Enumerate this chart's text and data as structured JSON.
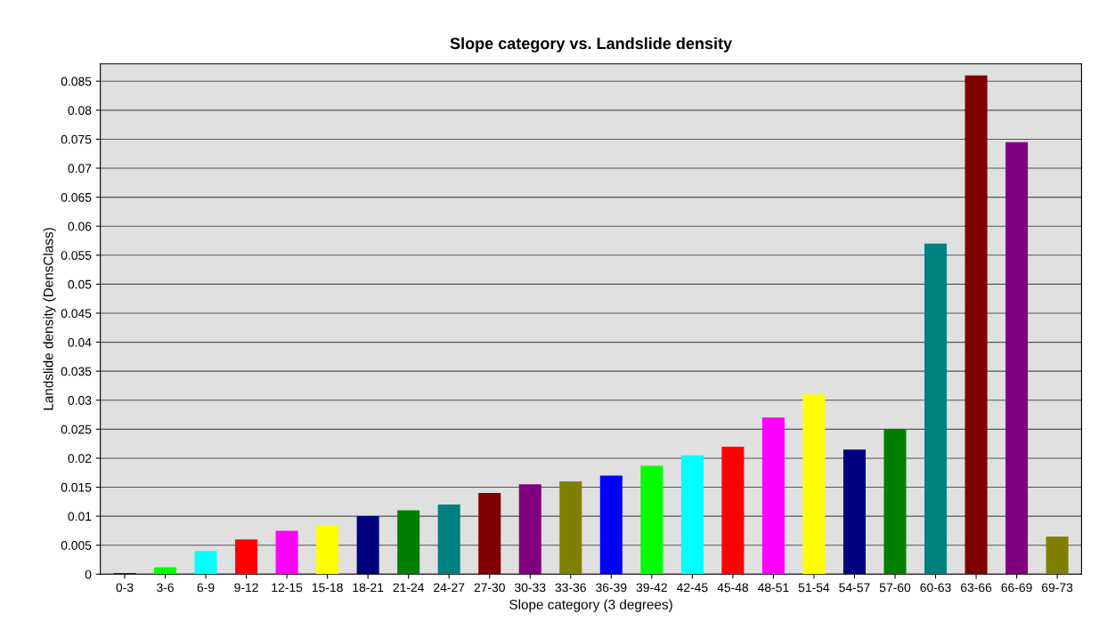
{
  "chart_data": {
    "type": "bar",
    "title": "Slope category vs. Landslide density",
    "xlabel": "Slope category (3 degrees)",
    "ylabel": "Landslide density (DensClass)",
    "categories": [
      "0-3",
      "3-6",
      "6-9",
      "9-12",
      "12-15",
      "15-18",
      "18-21",
      "21-24",
      "24-27",
      "27-30",
      "30-33",
      "33-36",
      "36-39",
      "39-42",
      "42-45",
      "45-48",
      "48-51",
      "51-54",
      "54-57",
      "57-60",
      "60-63",
      "63-66",
      "66-69",
      "69-73"
    ],
    "values": [
      0.0002,
      0.0012,
      0.004,
      0.006,
      0.0075,
      0.0085,
      0.01,
      0.011,
      0.012,
      0.014,
      0.0155,
      0.016,
      0.017,
      0.0187,
      0.0205,
      0.022,
      0.027,
      0.031,
      0.0215,
      0.025,
      0.057,
      0.086,
      0.0745,
      0.0065
    ],
    "colors": [
      "#0000ff",
      "#00ff00",
      "#00ffff",
      "#ff0000",
      "#ff00ff",
      "#ffff00",
      "#000080",
      "#008000",
      "#008080",
      "#800000",
      "#800080",
      "#808000",
      "#0000ff",
      "#00ff00",
      "#00ffff",
      "#ff0000",
      "#ff00ff",
      "#ffff00",
      "#000080",
      "#008000",
      "#008080",
      "#800000",
      "#800080",
      "#808000"
    ],
    "ylim": [
      0,
      0.088
    ],
    "yticks": [
      0,
      0.005,
      0.01,
      0.015,
      0.02,
      0.025,
      0.03,
      0.035,
      0.04,
      0.045,
      0.05,
      0.055,
      0.06,
      0.065,
      0.07,
      0.075,
      0.08,
      0.085
    ],
    "grid": "y",
    "legend": false
  }
}
